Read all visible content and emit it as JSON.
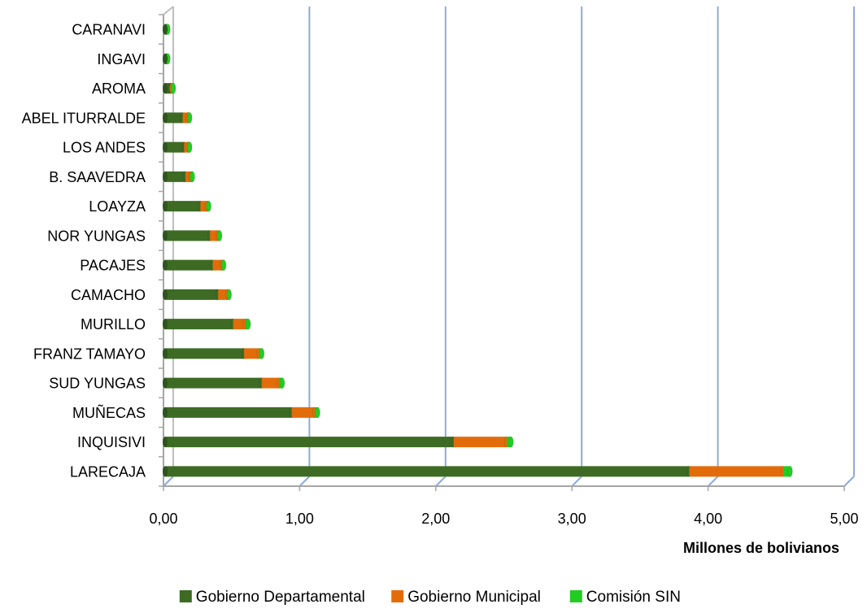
{
  "chart_data": {
    "type": "bar",
    "orientation": "horizontal",
    "stacked": true,
    "categories": [
      "CARANAVI",
      "INGAVI",
      "AROMA",
      "ABEL ITURRALDE",
      "LOS ANDES",
      "B. SAAVEDRA",
      "LOAYZA",
      "NOR YUNGAS",
      "PACAJES",
      "CAMACHO",
      "MURILLO",
      "FRANZ TAMAYO",
      "SUD YUNGAS",
      "MUÑECAS",
      "INQUISIVI",
      "LARECAJA"
    ],
    "series": [
      {
        "name": "Gobierno Departamental",
        "color": "#3d6b24",
        "values": [
          0.01,
          0.01,
          0.04,
          0.13,
          0.14,
          0.15,
          0.26,
          0.33,
          0.35,
          0.39,
          0.5,
          0.58,
          0.71,
          0.93,
          2.12,
          3.85
        ]
      },
      {
        "name": "Gobierno Municipal",
        "color": "#e36c0a",
        "values": [
          0.0,
          0.0,
          0.01,
          0.04,
          0.03,
          0.04,
          0.05,
          0.06,
          0.07,
          0.07,
          0.09,
          0.11,
          0.13,
          0.17,
          0.39,
          0.69
        ]
      },
      {
        "name": "Comisión SIN",
        "color": "#22cc22",
        "values": [
          0.01,
          0.01,
          0.01,
          0.01,
          0.01,
          0.01,
          0.01,
          0.01,
          0.01,
          0.01,
          0.02,
          0.02,
          0.02,
          0.02,
          0.03,
          0.05
        ]
      }
    ],
    "xlim": [
      0,
      5
    ],
    "x_ticks": [
      "0,00",
      "1,00",
      "2,00",
      "3,00",
      "4,00",
      "5,00"
    ],
    "xlabel": "Millones de bolivianos",
    "ylabel": "",
    "title": "",
    "grid": "vertical",
    "legend_position": "bottom"
  }
}
